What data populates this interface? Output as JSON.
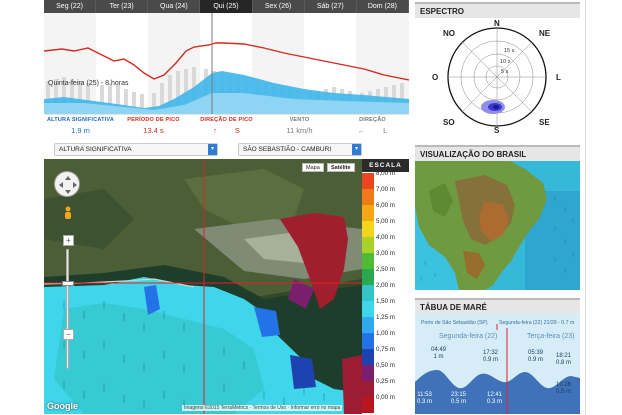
{
  "forecast": {
    "days": [
      "Seg (22)",
      "Ter (23)",
      "Qua (24)",
      "Qui (25)",
      "Sex (26)",
      "Sáb (27)",
      "Dom (28)"
    ],
    "active_day_index": 3,
    "note": "Quinta-feira (25) - 8 horas",
    "columns": [
      {
        "header": "ALTURA SIGNIFICATIVA",
        "value": "1.9 m",
        "color": "#1b6bc4"
      },
      {
        "header": "PERÍODO DE PICO",
        "value": "13.4 s",
        "color": "#d42a1e"
      },
      {
        "header": "DIREÇÃO DE PICO",
        "value": "S",
        "color": "#d42a1e",
        "icon": "direction-arrow-icon"
      },
      {
        "header": "VENTO",
        "value": "11 km/h",
        "color": "#777777"
      },
      {
        "header": "DIREÇÃO",
        "value": "L",
        "color": "#777777",
        "icon": "wind-arrow-icon"
      }
    ]
  },
  "spectrum": {
    "title": "ESPECTRO",
    "directions": [
      "NO",
      "N",
      "NE",
      "O",
      "L",
      "SO",
      "S",
      "SE"
    ],
    "rings": [
      "15 s",
      "10 s",
      "5 s"
    ]
  },
  "brasil": {
    "title": "VISUALIZAÇÃO DO BRASIL"
  },
  "tide": {
    "title": "TÁBUA DE MARÉ",
    "location": "Porto de São Sebastião (SP)",
    "datetime": "Segunda-feira (22) 21/29 - 0.7 m",
    "day_left": "Segunda-feira (22)",
    "day_right": "Terça-feira (23)",
    "events": [
      {
        "time": "04:49",
        "height": "1 m"
      },
      {
        "time": "11:53",
        "height": "0.3 m"
      },
      {
        "time": "17:32",
        "height": "0.9 m"
      },
      {
        "time": "23:15",
        "height": "0.5 m"
      },
      {
        "time": "05:39",
        "height": "0.9 m"
      },
      {
        "time": "12:41",
        "height": "0.3 m"
      },
      {
        "time": "18:21",
        "height": "0.8 m"
      },
      {
        "time": "13:26",
        "height": "0.5 m"
      }
    ]
  },
  "map": {
    "variable_select": "ALTURA SIGNIFICATIVA",
    "location_select": "SÃO SEBASTIÃO - CAMBURI",
    "map_types": [
      "Mapa",
      "Satélite"
    ],
    "zoom_in": "+",
    "zoom_out": "−",
    "google_logo": "Google",
    "attribution": "Imagens ©2015 TerraMetrics · Termos de Uso · Informar erro no mapa"
  },
  "scale": {
    "title": "ESCALA",
    "items": [
      {
        "label": "8,00 m",
        "color": "#e8461e"
      },
      {
        "label": "7,00 m",
        "color": "#f07a18"
      },
      {
        "label": "6,00 m",
        "color": "#f6a716"
      },
      {
        "label": "5,00 m",
        "color": "#f3d51b"
      },
      {
        "label": "4,00 m",
        "color": "#a8d12a"
      },
      {
        "label": "3,00 m",
        "color": "#4dbb34"
      },
      {
        "label": "2,50 m",
        "color": "#2aa84f"
      },
      {
        "label": "2,00 m",
        "color": "#34c4c9"
      },
      {
        "label": "1,50 m",
        "color": "#3fd5ea"
      },
      {
        "label": "1,25 m",
        "color": "#30a9f0"
      },
      {
        "label": "1,00 m",
        "color": "#2473e6"
      },
      {
        "label": "0,75 m",
        "color": "#1e43b0"
      },
      {
        "label": "0,50 m",
        "color": "#7a1f6e"
      },
      {
        "label": "0,25 m",
        "color": "#9b1c33"
      },
      {
        "label": "0,00 m",
        "color": "#b8151f"
      }
    ]
  }
}
